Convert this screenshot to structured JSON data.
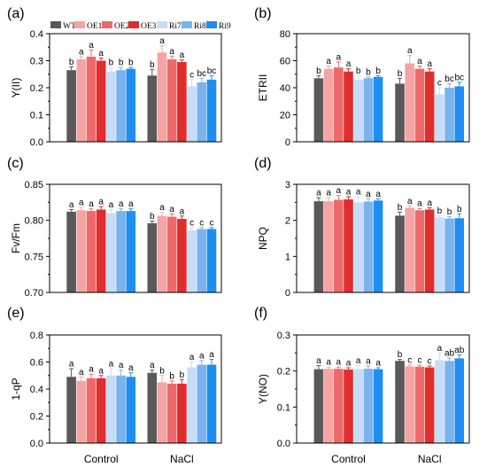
{
  "legend": [
    {
      "name": "WT",
      "color": "#595959"
    },
    {
      "name": "OE1",
      "color": "#f5a3a3"
    },
    {
      "name": "OE2",
      "color": "#ee6a6a"
    },
    {
      "name": "OE3",
      "color": "#e02d2d"
    },
    {
      "name": "Ri7",
      "color": "#c5ddf6"
    },
    {
      "name": "Ri8",
      "color": "#7ab3ee"
    },
    {
      "name": "Ri9",
      "color": "#1e8ff0"
    }
  ],
  "chart_data": [
    {
      "panel": "(a)",
      "type": "bar",
      "ylabel": "Y(II)",
      "ylim": [
        0,
        0.4
      ],
      "yticks": [
        "0.0",
        "0.1",
        "0.2",
        "0.3",
        "0.4"
      ],
      "categories": [
        "Control",
        "NaCl"
      ],
      "series": [
        {
          "name": "WT",
          "values": [
            0.265,
            0.245
          ],
          "errors": [
            0.012,
            0.022
          ],
          "letters": [
            "b",
            "b"
          ]
        },
        {
          "name": "OE1",
          "values": [
            0.305,
            0.33
          ],
          "errors": [
            0.01,
            0.025
          ],
          "letters": [
            "a",
            "a"
          ]
        },
        {
          "name": "OE2",
          "values": [
            0.315,
            0.305
          ],
          "errors": [
            0.025,
            0.012
          ],
          "letters": [
            "a",
            "a"
          ]
        },
        {
          "name": "OE3",
          "values": [
            0.3,
            0.295
          ],
          "errors": [
            0.01,
            0.008
          ],
          "letters": [
            "a",
            "a"
          ]
        },
        {
          "name": "Ri7",
          "values": [
            0.26,
            0.205
          ],
          "errors": [
            0.015,
            0.025
          ],
          "letters": [
            "b",
            "c"
          ]
        },
        {
          "name": "Ri8",
          "values": [
            0.265,
            0.22
          ],
          "errors": [
            0.01,
            0.015
          ],
          "letters": [
            "b",
            "bc"
          ]
        },
        {
          "name": "Ri9",
          "values": [
            0.27,
            0.23
          ],
          "errors": [
            0.005,
            0.015
          ],
          "letters": [
            "b",
            "bc"
          ]
        }
      ]
    },
    {
      "panel": "(b)",
      "type": "bar",
      "ylabel": "ETRII",
      "ylim": [
        0,
        80
      ],
      "yticks": [
        "0",
        "20",
        "40",
        "60",
        "80"
      ],
      "categories": [
        "Control",
        "NaCl"
      ],
      "series": [
        {
          "name": "WT",
          "values": [
            47,
            43
          ],
          "errors": [
            2,
            4
          ],
          "letters": [
            "b",
            "b"
          ]
        },
        {
          "name": "OE1",
          "values": [
            54,
            58
          ],
          "errors": [
            2,
            6
          ],
          "letters": [
            "a",
            "a"
          ]
        },
        {
          "name": "OE2",
          "values": [
            55,
            54
          ],
          "errors": [
            4,
            2
          ],
          "letters": [
            "a",
            "a"
          ]
        },
        {
          "name": "OE3",
          "values": [
            52,
            52
          ],
          "errors": [
            2,
            2
          ],
          "letters": [
            "a",
            "a"
          ]
        },
        {
          "name": "Ri7",
          "values": [
            46,
            35
          ],
          "errors": [
            3,
            5
          ],
          "letters": [
            "b",
            "c"
          ]
        },
        {
          "name": "Ri8",
          "values": [
            47,
            40
          ],
          "errors": [
            1,
            3
          ],
          "letters": [
            "b",
            "bc"
          ]
        },
        {
          "name": "Ri9",
          "values": [
            48,
            41
          ],
          "errors": [
            1,
            3
          ],
          "letters": [
            "b",
            "bc"
          ]
        }
      ]
    },
    {
      "panel": "(c)",
      "type": "bar",
      "ylabel": "Fv/Fm",
      "ylim": [
        0.7,
        0.85
      ],
      "yticks": [
        "0.70",
        "0.75",
        "0.80",
        "0.85"
      ],
      "categories": [
        "Control",
        "NaCl"
      ],
      "series": [
        {
          "name": "WT",
          "values": [
            0.812,
            0.796
          ],
          "errors": [
            0.003,
            0.003
          ],
          "letters": [
            "a",
            "b"
          ]
        },
        {
          "name": "OE1",
          "values": [
            0.814,
            0.806
          ],
          "errors": [
            0.004,
            0.005
          ],
          "letters": [
            "a",
            "a"
          ]
        },
        {
          "name": "OE2",
          "values": [
            0.813,
            0.805
          ],
          "errors": [
            0.003,
            0.004
          ],
          "letters": [
            "a",
            "a"
          ]
        },
        {
          "name": "OE3",
          "values": [
            0.815,
            0.802
          ],
          "errors": [
            0.004,
            0.004
          ],
          "letters": [
            "a",
            "a"
          ]
        },
        {
          "name": "Ri7",
          "values": [
            0.81,
            0.786
          ],
          "errors": [
            0.005,
            0.004
          ],
          "letters": [
            "a",
            "c"
          ]
        },
        {
          "name": "Ri8",
          "values": [
            0.813,
            0.788
          ],
          "errors": [
            0.003,
            0.002
          ],
          "letters": [
            "a",
            "c"
          ]
        },
        {
          "name": "Ri9",
          "values": [
            0.813,
            0.788
          ],
          "errors": [
            0.003,
            0.002
          ],
          "letters": [
            "a",
            "c"
          ]
        }
      ]
    },
    {
      "panel": "(d)",
      "type": "bar",
      "ylabel": "NPQ",
      "ylim": [
        0,
        3
      ],
      "yticks": [
        "0",
        "1",
        "2",
        "3"
      ],
      "categories": [
        "Control",
        "NaCl"
      ],
      "series": [
        {
          "name": "WT",
          "values": [
            2.53,
            2.13
          ],
          "errors": [
            0.1,
            0.1
          ],
          "letters": [
            "a",
            "b"
          ]
        },
        {
          "name": "OE1",
          "values": [
            2.53,
            2.35
          ],
          "errors": [
            0.1,
            0.05
          ],
          "letters": [
            "a",
            "a"
          ]
        },
        {
          "name": "OE2",
          "values": [
            2.57,
            2.28
          ],
          "errors": [
            0.12,
            0.05
          ],
          "letters": [
            "a",
            "a"
          ]
        },
        {
          "name": "OE3",
          "values": [
            2.58,
            2.3
          ],
          "errors": [
            0.08,
            0.05
          ],
          "letters": [
            "a",
            "a"
          ]
        },
        {
          "name": "Ri7",
          "values": [
            2.5,
            2.08
          ],
          "errors": [
            0.15,
            0.05
          ],
          "letters": [
            "a",
            "b"
          ]
        },
        {
          "name": "Ri8",
          "values": [
            2.52,
            2.05
          ],
          "errors": [
            0.08,
            0.05
          ],
          "letters": [
            "a",
            "b"
          ]
        },
        {
          "name": "Ri9",
          "values": [
            2.55,
            2.06
          ],
          "errors": [
            0.05,
            0.12
          ],
          "letters": [
            "a",
            "b"
          ]
        }
      ]
    },
    {
      "panel": "(e)",
      "type": "bar",
      "ylabel": "1-qP",
      "ylim": [
        0,
        0.8
      ],
      "yticks": [
        "0.0",
        "0.2",
        "0.4",
        "0.6",
        "0.8"
      ],
      "categories": [
        "Control",
        "NaCl"
      ],
      "series": [
        {
          "name": "WT",
          "values": [
            0.49,
            0.52
          ],
          "errors": [
            0.06,
            0.02
          ],
          "letters": [
            "a",
            "a"
          ]
        },
        {
          "name": "OE1",
          "values": [
            0.46,
            0.45
          ],
          "errors": [
            0.03,
            0.05
          ],
          "letters": [
            "a",
            "b"
          ]
        },
        {
          "name": "OE2",
          "values": [
            0.48,
            0.44
          ],
          "errors": [
            0.03,
            0.02
          ],
          "letters": [
            "a",
            "b"
          ]
        },
        {
          "name": "OE3",
          "values": [
            0.48,
            0.44
          ],
          "errors": [
            0.02,
            0.03
          ],
          "letters": [
            "a",
            "b"
          ]
        },
        {
          "name": "Ri7",
          "values": [
            0.5,
            0.56
          ],
          "errors": [
            0.05,
            0.04
          ],
          "letters": [
            "a",
            "a"
          ]
        },
        {
          "name": "Ri8",
          "values": [
            0.5,
            0.58
          ],
          "errors": [
            0.04,
            0.03
          ],
          "letters": [
            "a",
            "a"
          ]
        },
        {
          "name": "Ri9",
          "values": [
            0.49,
            0.58
          ],
          "errors": [
            0.03,
            0.04
          ],
          "letters": [
            "a",
            "a"
          ]
        }
      ]
    },
    {
      "panel": "(f)",
      "type": "bar",
      "ylabel": "Y(NO)",
      "ylim": [
        0,
        0.3
      ],
      "yticks": [
        "0.0",
        "0.1",
        "0.2",
        "0.3"
      ],
      "categories": [
        "Control",
        "NaCl"
      ],
      "series": [
        {
          "name": "WT",
          "values": [
            0.205,
            0.228
          ],
          "errors": [
            0.01,
            0.004
          ],
          "letters": [
            "a",
            "b"
          ]
        },
        {
          "name": "OE1",
          "values": [
            0.206,
            0.213
          ],
          "errors": [
            0.005,
            0.004
          ],
          "letters": [
            "a",
            "c"
          ]
        },
        {
          "name": "OE2",
          "values": [
            0.206,
            0.212
          ],
          "errors": [
            0.005,
            0.004
          ],
          "letters": [
            "a",
            "c"
          ]
        },
        {
          "name": "OE3",
          "values": [
            0.204,
            0.21
          ],
          "errors": [
            0.005,
            0.004
          ],
          "letters": [
            "a",
            "c"
          ]
        },
        {
          "name": "Ri7",
          "values": [
            0.205,
            0.23
          ],
          "errors": [
            0.01,
            0.02
          ],
          "letters": [
            "a",
            "a"
          ]
        },
        {
          "name": "Ri8",
          "values": [
            0.206,
            0.228
          ],
          "errors": [
            0.008,
            0.008
          ],
          "letters": [
            "a",
            "ab"
          ]
        },
        {
          "name": "Ri9",
          "values": [
            0.205,
            0.235
          ],
          "errors": [
            0.004,
            0.01
          ],
          "letters": [
            "a",
            "ab"
          ]
        }
      ]
    }
  ]
}
